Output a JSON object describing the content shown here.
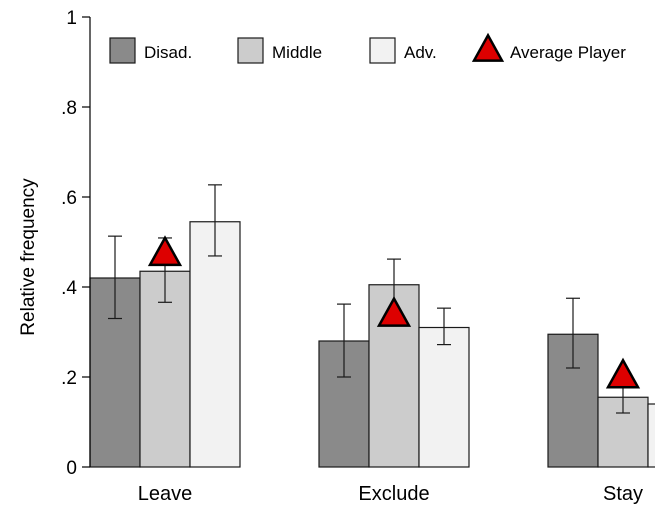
{
  "chart_data": {
    "type": "bar",
    "categories": [
      "Leave",
      "Exclude",
      "Stay"
    ],
    "series": [
      {
        "name": "Disad.",
        "color": "#8a8a8a",
        "values": [
          0.42,
          0.28,
          0.295
        ],
        "err_low": [
          0.33,
          0.2,
          0.22
        ],
        "err_high": [
          0.513,
          0.362,
          0.375
        ]
      },
      {
        "name": "Middle",
        "color": "#cccccc",
        "values": [
          0.435,
          0.405,
          0.155
        ],
        "err_low": [
          0.366,
          0.333,
          0.12
        ],
        "err_high": [
          0.509,
          0.462,
          0.19
        ]
      },
      {
        "name": "Adv.",
        "color": "#f2f2f2",
        "values": [
          0.545,
          0.31,
          0.14
        ],
        "err_low": [
          0.469,
          0.272,
          null
        ],
        "err_high": [
          0.627,
          0.353,
          null
        ]
      }
    ],
    "average_player": {
      "name": "Average Player",
      "color": "#dd0000",
      "values": [
        0.472,
        0.337,
        0.2
      ]
    },
    "ylabel": "Relative frequency",
    "ylim": [
      0,
      1
    ],
    "yticks": [
      {
        "value": 0,
        "label": "0"
      },
      {
        "value": 0.2,
        "label": ".2"
      },
      {
        "value": 0.4,
        "label": ".4"
      },
      {
        "value": 0.6,
        "label": ".6"
      },
      {
        "value": 0.8,
        "label": ".8"
      },
      {
        "value": 1,
        "label": "1"
      }
    ],
    "legend": [
      "Disad.",
      "Middle",
      "Adv.",
      "Average Player"
    ],
    "legend_position": "top",
    "grid": false
  }
}
